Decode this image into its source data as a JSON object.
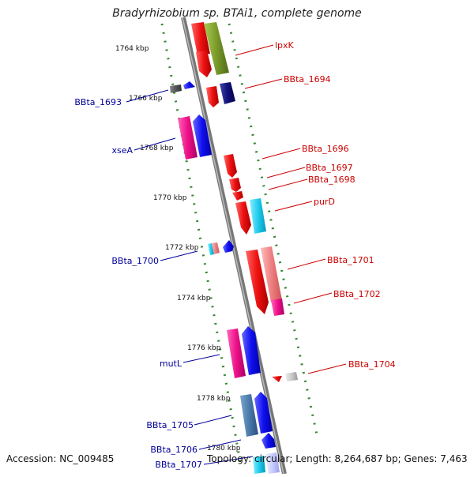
{
  "title": "Bradyrhizobium sp. BTAi1, complete genome",
  "accession": "Accession: NC_009485",
  "topology": "Topology: circular; Length: 8,264,687 bp; Genes: 7,463",
  "colors": {
    "red": "#ee1111",
    "olive": "#7a9a2a",
    "navy": "#10107a",
    "blue": "#1010ee",
    "magenta": "#ee1088",
    "pink": "#ee8080",
    "cyan": "#22ccee",
    "steel": "#4a7aaa",
    "gray": "#555555",
    "lightgray": "#cccccc",
    "label_red": "#cc0000",
    "label_blue": "#000099",
    "ruler_green": "#338833",
    "backbone": "#888888"
  },
  "ruler_ticks": [
    "1764 kbp",
    "1766 kbp",
    "1768 kbp",
    "1770 kbp",
    "1772 kbp",
    "1774 kbp",
    "1776 kbp",
    "1778 kbp",
    "1780 kbp"
  ],
  "right_labels": [
    "lpxK",
    "BBta_1694",
    "BBta_1696",
    "BBta_1697",
    "BBta_1698",
    "purD",
    "BBta_1701",
    "BBta_1702",
    "BBta_1704"
  ],
  "left_labels": [
    "BBta_1693",
    "xseA",
    "BBta_1700",
    "mutL",
    "BBta_1705",
    "BBta_1706",
    "BBta_1707"
  ]
}
